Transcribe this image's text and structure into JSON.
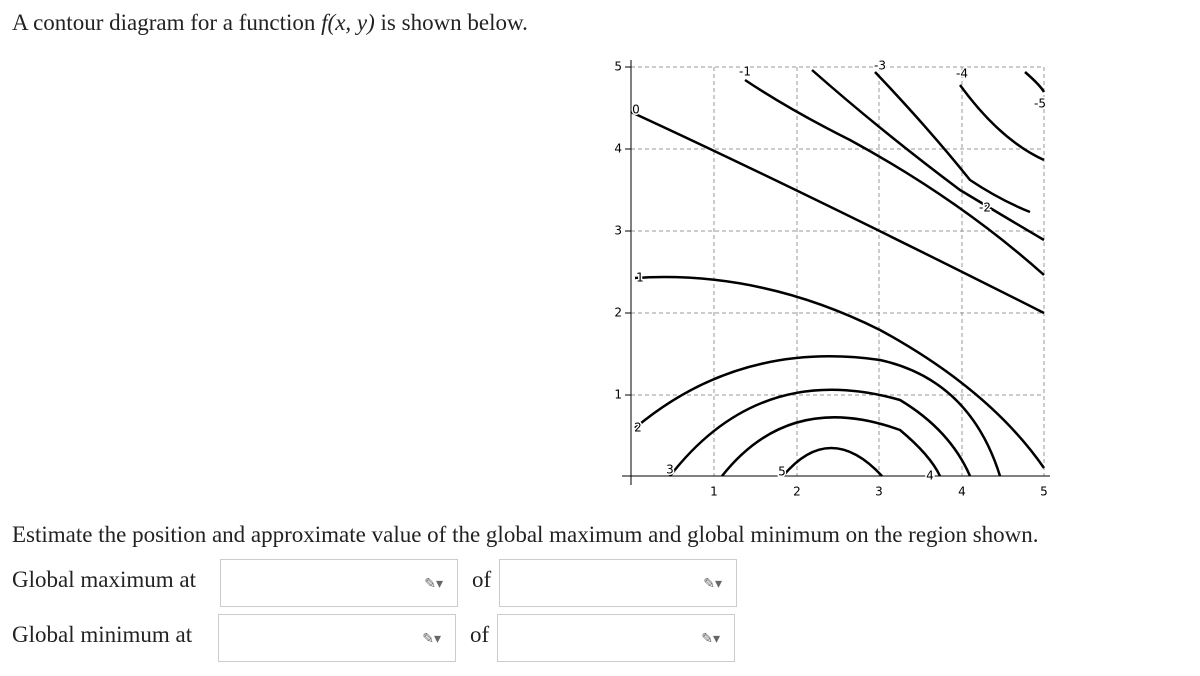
{
  "header": {
    "intro": "A contour diagram for a function",
    "function": "f(x, y)",
    "intro_end": "is shown below."
  },
  "plot": {
    "x_tick_labels": [
      "1",
      "2",
      "3",
      "4",
      "5"
    ],
    "y_tick_labels": [
      "1",
      "2",
      "3",
      "4",
      "5"
    ],
    "contour_labels": [
      "0",
      "-1",
      "-3",
      "-4",
      "-5",
      "-2",
      "1",
      "2",
      "3",
      "5",
      "4"
    ]
  },
  "question": "Estimate the position and approximate value of the global maximum and global minimum on the region shown.",
  "rows": [
    {
      "label": "Global maximum at",
      "of": "of"
    },
    {
      "label": "Global minimum at",
      "of": "of"
    }
  ]
}
